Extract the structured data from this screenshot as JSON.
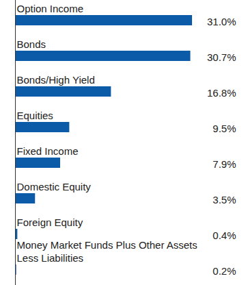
{
  "chart_data": {
    "type": "bar",
    "orientation": "horizontal",
    "categories": [
      "Option Income",
      "Bonds",
      "Bonds/High Yield",
      "Equities",
      "Fixed Income",
      "Domestic Equity",
      "Foreign Equity",
      "Money Market Funds Plus Other Assets Less Liabilities"
    ],
    "values": [
      31.0,
      30.7,
      16.8,
      9.5,
      7.9,
      3.5,
      0.4,
      0.2
    ],
    "value_labels": [
      "31.0%",
      "30.7%",
      "16.8%",
      "9.5%",
      "7.9%",
      "3.5%",
      "0.4%",
      "0.2%"
    ],
    "color": "#0b5ba8",
    "xlim": [
      0,
      31
    ],
    "data_labels": true,
    "tick_labels": false
  }
}
